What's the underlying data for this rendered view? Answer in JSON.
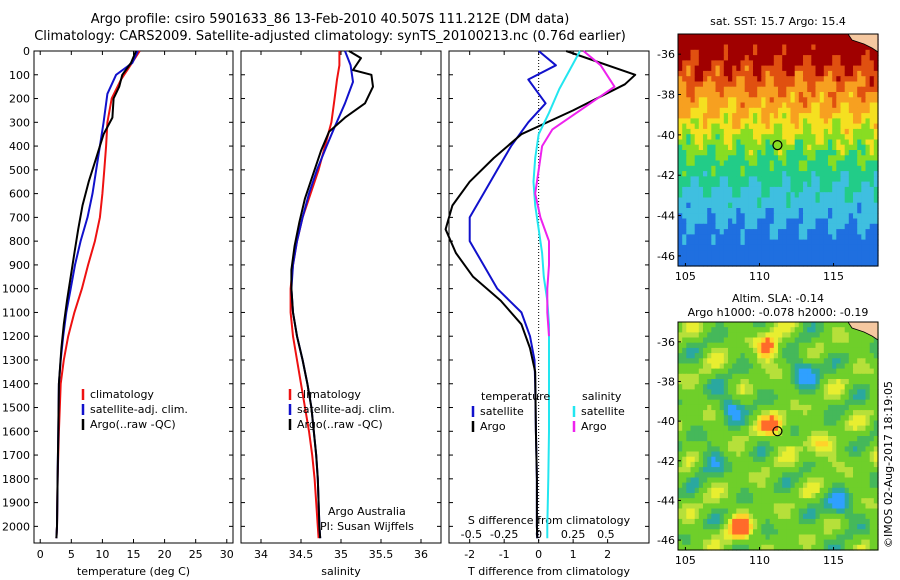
{
  "title_line1": "Argo profile: csiro 5901633_86 13-Feb-2010 40.507S 111.212E (DM data)",
  "title_line2": "Climatology: CARS2009. Satellite-adjusted climatology: synTS_20100213.nc (0.76d earlier)",
  "timestamp": "©IMOS 02-Aug-2017 18:19:05",
  "colors": {
    "climatology": "#ee1111",
    "satellite": "#1111cc",
    "argo": "#000000",
    "sat_salinity": "#22e6f0",
    "argo_salinity": "#ee22ee"
  },
  "chart_data": [
    {
      "type": "line",
      "panel": "temperature",
      "xlabel": "temperature (deg C)",
      "ylabel": "",
      "xlim": [
        -1,
        31
      ],
      "ylim": [
        2070,
        0
      ],
      "xticks": [
        0,
        5,
        10,
        15,
        20,
        25,
        30
      ],
      "yticks": [
        0,
        100,
        200,
        300,
        400,
        500,
        600,
        700,
        800,
        900,
        1000,
        1100,
        1200,
        1300,
        1400,
        1500,
        1600,
        1700,
        1800,
        1900,
        2000
      ],
      "legend": [
        "climatology",
        "satellite-adj. clim.",
        "Argo(..raw -QC)"
      ],
      "series": [
        {
          "name": "climatology",
          "color": "#ee1111",
          "points": [
            [
              16,
              0
            ],
            [
              14.5,
              60
            ],
            [
              13,
              120
            ],
            [
              11.5,
              200
            ],
            [
              10.8,
              300
            ],
            [
              10.6,
              400
            ],
            [
              10.3,
              500
            ],
            [
              10,
              600
            ],
            [
              9.6,
              700
            ],
            [
              8.8,
              800
            ],
            [
              7.7,
              900
            ],
            [
              6.7,
              1000
            ],
            [
              5.5,
              1100
            ],
            [
              4.5,
              1200
            ],
            [
              3.8,
              1300
            ],
            [
              3.3,
              1400
            ],
            [
              3.0,
              1600
            ],
            [
              2.8,
              1800
            ],
            [
              2.7,
              2000
            ],
            [
              2.6,
              2050
            ]
          ]
        },
        {
          "name": "satellite-adj. clim.",
          "color": "#1111cc",
          "points": [
            [
              15.7,
              0
            ],
            [
              14.8,
              50
            ],
            [
              12.2,
              100
            ],
            [
              10.8,
              180
            ],
            [
              10.2,
              300
            ],
            [
              9.6,
              400
            ],
            [
              9.0,
              500
            ],
            [
              8.4,
              600
            ],
            [
              7.6,
              700
            ],
            [
              6.5,
              800
            ],
            [
              5.6,
              900
            ],
            [
              4.9,
              1000
            ],
            [
              4.2,
              1100
            ],
            [
              3.7,
              1200
            ],
            [
              3.3,
              1300
            ],
            [
              3.0,
              1400
            ],
            [
              2.9,
              1600
            ],
            [
              2.8,
              1800
            ],
            [
              2.7,
              2000
            ],
            [
              2.6,
              2050
            ]
          ]
        },
        {
          "name": "Argo(..raw -QC)",
          "color": "#000000",
          "points": [
            [
              15.4,
              0
            ],
            [
              14.6,
              50
            ],
            [
              13.2,
              100
            ],
            [
              12.7,
              150
            ],
            [
              11.8,
              200
            ],
            [
              11.6,
              280
            ],
            [
              10.2,
              350
            ],
            [
              9.0,
              450
            ],
            [
              7.8,
              550
            ],
            [
              6.8,
              650
            ],
            [
              6.1,
              750
            ],
            [
              5.5,
              850
            ],
            [
              4.9,
              950
            ],
            [
              4.3,
              1050
            ],
            [
              3.8,
              1150
            ],
            [
              3.4,
              1250
            ],
            [
              3.0,
              1400
            ],
            [
              2.9,
              1600
            ],
            [
              2.8,
              1800
            ],
            [
              2.7,
              2000
            ],
            [
              2.6,
              2050
            ]
          ]
        }
      ]
    },
    {
      "type": "line",
      "panel": "salinity",
      "xlabel": "salinity",
      "xlim": [
        33.75,
        36.25
      ],
      "ylim": [
        2070,
        0
      ],
      "xticks": [
        34,
        34.5,
        35,
        35.5,
        36
      ],
      "legend": [
        "climatology",
        "satellite-adj. clim.",
        "Argo(..raw -QC)"
      ],
      "annotation": [
        "Argo Australia",
        "PI: Susan Wijffels"
      ],
      "series": [
        {
          "name": "climatology",
          "color": "#ee1111",
          "points": [
            [
              34.98,
              0
            ],
            [
              34.98,
              60
            ],
            [
              34.95,
              120
            ],
            [
              34.92,
              200
            ],
            [
              34.88,
              300
            ],
            [
              34.8,
              400
            ],
            [
              34.72,
              500
            ],
            [
              34.62,
              600
            ],
            [
              34.52,
              700
            ],
            [
              34.45,
              800
            ],
            [
              34.4,
              900
            ],
            [
              34.37,
              1000
            ],
            [
              34.37,
              1100
            ],
            [
              34.4,
              1200
            ],
            [
              34.45,
              1300
            ],
            [
              34.5,
              1400
            ],
            [
              34.55,
              1500
            ],
            [
              34.6,
              1600
            ],
            [
              34.64,
              1700
            ],
            [
              34.67,
              1800
            ],
            [
              34.69,
              1900
            ],
            [
              34.71,
              2000
            ],
            [
              34.72,
              2050
            ]
          ]
        },
        {
          "name": "satellite-adj. clim.",
          "color": "#1111cc",
          "points": [
            [
              35.05,
              0
            ],
            [
              35.12,
              60
            ],
            [
              35.15,
              130
            ],
            [
              35.05,
              220
            ],
            [
              34.92,
              320
            ],
            [
              34.82,
              400
            ],
            [
              34.7,
              500
            ],
            [
              34.6,
              600
            ],
            [
              34.52,
              700
            ],
            [
              34.45,
              800
            ],
            [
              34.4,
              900
            ],
            [
              34.38,
              1000
            ],
            [
              34.4,
              1100
            ],
            [
              34.45,
              1200
            ],
            [
              34.52,
              1300
            ],
            [
              34.58,
              1400
            ],
            [
              34.63,
              1500
            ],
            [
              34.66,
              1600
            ],
            [
              34.69,
              1700
            ],
            [
              34.71,
              1800
            ],
            [
              34.72,
              1900
            ],
            [
              34.73,
              2000
            ],
            [
              34.74,
              2050
            ]
          ]
        },
        {
          "name": "Argo(..raw -QC)",
          "color": "#000000",
          "points": [
            [
              35.1,
              0
            ],
            [
              35.25,
              30
            ],
            [
              35.15,
              80
            ],
            [
              35.38,
              100
            ],
            [
              35.4,
              150
            ],
            [
              35.3,
              220
            ],
            [
              35.05,
              280
            ],
            [
              34.85,
              340
            ],
            [
              34.75,
              420
            ],
            [
              34.65,
              520
            ],
            [
              34.55,
              620
            ],
            [
              34.48,
              720
            ],
            [
              34.42,
              820
            ],
            [
              34.38,
              920
            ],
            [
              34.38,
              1000
            ],
            [
              34.4,
              1100
            ],
            [
              34.45,
              1200
            ],
            [
              34.52,
              1300
            ],
            [
              34.58,
              1400
            ],
            [
              34.63,
              1500
            ],
            [
              34.66,
              1600
            ],
            [
              34.69,
              1700
            ],
            [
              34.71,
              1800
            ],
            [
              34.72,
              1900
            ],
            [
              34.73,
              2000
            ],
            [
              34.74,
              2050
            ]
          ]
        }
      ]
    },
    {
      "type": "line",
      "panel": "differences",
      "xlabel": "T difference from climatology",
      "x2label": "S difference from climatology",
      "xlim": [
        -2.6,
        3.2
      ],
      "ylim": [
        2070,
        0
      ],
      "xticks": [
        -2,
        -1,
        0,
        1,
        2
      ],
      "x2ticks": [
        "-0.5",
        "-0.25",
        "0",
        "0.25",
        "0.5"
      ],
      "legend_temperature": {
        "title": "temperature",
        "items": [
          "satellite",
          "Argo"
        ]
      },
      "legend_salinity": {
        "title": "salinity",
        "items": [
          "satellite",
          "Argo"
        ]
      },
      "series": [
        {
          "name": "temperature satellite",
          "color": "#1111cc",
          "points": [
            [
              0,
              0
            ],
            [
              0.5,
              60
            ],
            [
              -0.3,
              120
            ],
            [
              0.2,
              220
            ],
            [
              -0.3,
              300
            ],
            [
              -0.8,
              400
            ],
            [
              -1.2,
              500
            ],
            [
              -1.6,
              600
            ],
            [
              -2.0,
              700
            ],
            [
              -2.0,
              800
            ],
            [
              -1.6,
              900
            ],
            [
              -1.2,
              1000
            ],
            [
              -0.5,
              1100
            ],
            [
              -0.25,
              1200
            ],
            [
              -0.12,
              1300
            ],
            [
              -0.1,
              1400
            ],
            [
              -0.08,
              1600
            ],
            [
              -0.05,
              1800
            ],
            [
              -0.05,
              2000
            ],
            [
              -0.04,
              2050
            ]
          ]
        },
        {
          "name": "temperature Argo",
          "color": "#000000",
          "points": [
            [
              0.8,
              0
            ],
            [
              2.8,
              100
            ],
            [
              2.5,
              140
            ],
            [
              1.0,
              250
            ],
            [
              -0.5,
              350
            ],
            [
              -1.3,
              450
            ],
            [
              -2.0,
              550
            ],
            [
              -2.5,
              650
            ],
            [
              -2.7,
              750
            ],
            [
              -2.4,
              850
            ],
            [
              -1.9,
              950
            ],
            [
              -1.1,
              1050
            ],
            [
              -0.5,
              1150
            ],
            [
              -0.25,
              1250
            ],
            [
              -0.1,
              1350
            ],
            [
              -0.08,
              1600
            ],
            [
              -0.05,
              1800
            ],
            [
              -0.05,
              2000
            ],
            [
              -0.04,
              2050
            ]
          ]
        },
        {
          "name": "salinity satellite",
          "color": "#22e6f0",
          "points": [
            [
              1.2,
              0
            ],
            [
              0.9,
              80
            ],
            [
              0.6,
              160
            ],
            [
              0.3,
              260
            ],
            [
              0,
              350
            ],
            [
              -0.1,
              450
            ],
            [
              -0.15,
              550
            ],
            [
              -0.1,
              650
            ],
            [
              0,
              750
            ],
            [
              0.1,
              850
            ],
            [
              0.15,
              950
            ],
            [
              0.25,
              1050
            ],
            [
              0.3,
              1150
            ],
            [
              0.3,
              1300
            ],
            [
              0.3,
              1450
            ],
            [
              0.3,
              1600
            ],
            [
              0.28,
              1800
            ],
            [
              0.25,
              2000
            ],
            [
              0.25,
              2050
            ]
          ]
        },
        {
          "name": "salinity Argo",
          "color": "#ee22ee",
          "points": [
            [
              1.3,
              0
            ],
            [
              1.8,
              60
            ],
            [
              2.2,
              150
            ],
            [
              1.2,
              250
            ],
            [
              0.4,
              330
            ],
            [
              0.1,
              400
            ],
            [
              0,
              500
            ],
            [
              -0.1,
              600
            ],
            [
              0.05,
              700
            ],
            [
              0.3,
              800
            ],
            [
              0.3,
              900
            ],
            [
              0.25,
              1000
            ],
            [
              0.25,
              1100
            ],
            [
              0.3,
              1200
            ]
          ]
        }
      ]
    },
    {
      "type": "heatmap",
      "panel": "sst-map",
      "title": "sat. SST: 15.7  Argo: 15.4",
      "xticks": [
        105,
        110,
        115
      ],
      "yticks": [
        -36,
        -38,
        -40,
        -42,
        -44,
        -46
      ],
      "xlim": [
        104.5,
        118
      ],
      "ylim": [
        -35,
        -46.5
      ],
      "marker": [
        111.212,
        -40.507
      ]
    },
    {
      "type": "heatmap",
      "panel": "sla-map",
      "title_line1": "Altim. SLA: -0.14",
      "title_line2": "Argo h1000: -0.078  h2000: -0.19",
      "xticks": [
        105,
        110,
        115
      ],
      "yticks": [
        -36,
        -38,
        -40,
        -42,
        -44,
        -46
      ],
      "xlim": [
        104.5,
        118
      ],
      "ylim": [
        -35,
        -46.5
      ],
      "marker": [
        111.212,
        -40.507
      ]
    }
  ]
}
